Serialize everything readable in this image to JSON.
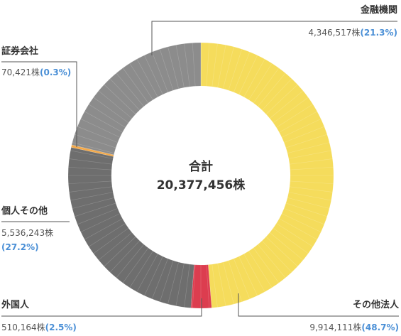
{
  "chart_data": {
    "type": "pie",
    "center_label": "合計",
    "center_value": "20,377,456株",
    "slices": [
      {
        "name": "その他法人",
        "value_text": "9,914,111株",
        "percent_text": "(48.7%)",
        "percent": 48.7,
        "color": "#f5dc5c"
      },
      {
        "name": "外国人",
        "value_text": "510,164株",
        "percent_text": "(2.5%)",
        "percent": 2.5,
        "color": "#dc3d4f"
      },
      {
        "name": "個人その他",
        "value_text": "5,536,243株",
        "percent_text": "(27.2%)",
        "percent": 27.2,
        "color": "#6e6e6e"
      },
      {
        "name": "証券会社",
        "value_text": "70,421株",
        "percent_text": "(0.3%)",
        "percent": 0.3,
        "color": "#f3a94a"
      },
      {
        "name": "金融機関",
        "value_text": "4,346,517株",
        "percent_text": "(21.3%)",
        "percent": 21.3,
        "color": "#8c8c8c"
      }
    ]
  }
}
